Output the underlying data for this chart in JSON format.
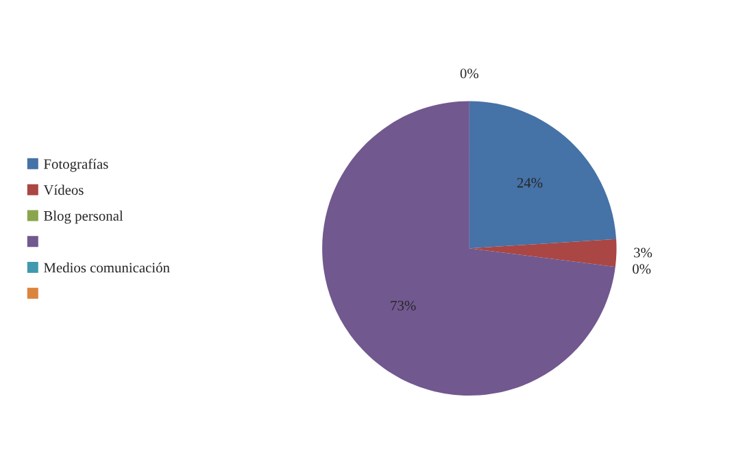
{
  "chart_data": {
    "type": "pie",
    "categories": [
      "Fotografías",
      "Vídeos",
      "Blog personal",
      null,
      "Medios comunicación",
      null
    ],
    "values": [
      24,
      3,
      0,
      73,
      0,
      0
    ],
    "colors": [
      "#4572a7",
      "#aa4643",
      "#89a54e",
      "#71588f",
      "#4198af",
      "#db843d"
    ],
    "value_labels": [
      "24%",
      "3%",
      "0%",
      "73%",
      "0%",
      null
    ],
    "legend": "left"
  }
}
